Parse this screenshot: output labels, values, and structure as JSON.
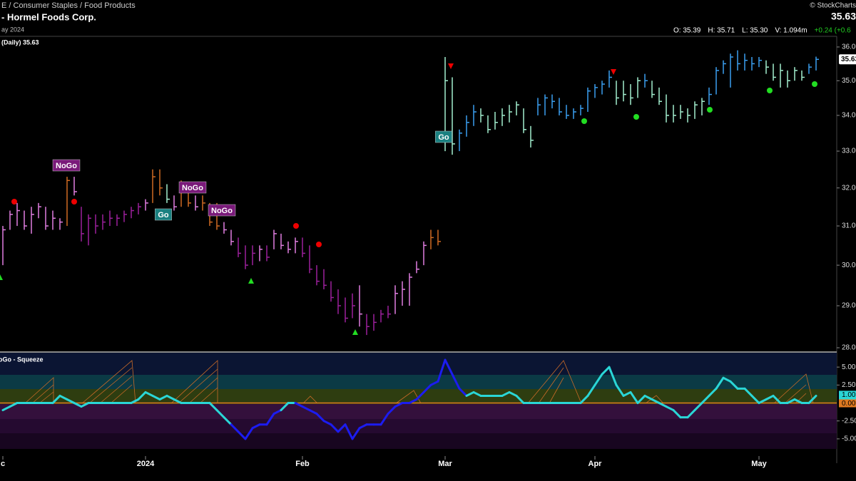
{
  "header": {
    "breadcrumb": "E / Consumer Staples / Food Products",
    "title": "- Hormel Foods Corp.",
    "date": "ay 2024",
    "brand": "© StockCharts",
    "last": "35.63",
    "quote": [
      "O: 35.39",
      "H: 35.71",
      "L: 35.30",
      "V: 1.094m"
    ],
    "change": "+0.24 (+0.6"
  },
  "chart_data": [
    {
      "type": "ohlc",
      "label": "(Daily) 35.63",
      "log_scale": true,
      "xlim": [
        0,
        114
      ],
      "xticks": [
        {
          "value": 0,
          "label": "c"
        },
        {
          "value": 20,
          "label": "2024"
        },
        {
          "value": 42,
          "label": "Feb"
        },
        {
          "value": 62,
          "label": "Mar"
        },
        {
          "value": 83,
          "label": "Apr"
        },
        {
          "value": 106,
          "label": "May"
        }
      ],
      "ylim": [
        27.9,
        36.3
      ],
      "yticks": [
        {
          "value": 28,
          "label": "28.00"
        },
        {
          "value": 29,
          "label": "29.00"
        },
        {
          "value": 30,
          "label": "30.00"
        },
        {
          "value": 31,
          "label": "31.00"
        },
        {
          "value": 32,
          "label": "32.00"
        },
        {
          "value": 33,
          "label": "33.00"
        },
        {
          "value": 34,
          "label": "34.00"
        },
        {
          "value": 35,
          "label": "35.00"
        },
        {
          "value": 36,
          "label": "36.00"
        }
      ],
      "palette": {
        "p": "#e07ee0",
        "d": "#9c209c",
        "o": "#d06a22",
        "a": "#a2efcf",
        "b": "#3a9ff0"
      },
      "high": [
        31.0,
        31.4,
        31.6,
        31.4,
        31.5,
        31.6,
        31.5,
        31.4,
        31.2,
        32.3,
        32.3,
        31.5,
        31.3,
        31.3,
        31.3,
        31.4,
        31.3,
        31.4,
        31.5,
        31.6,
        31.7,
        32.5,
        32.5,
        32.1,
        31.8,
        32.2,
        32.0,
        31.8,
        31.8,
        31.6,
        31.6,
        31.1,
        30.9,
        30.7,
        30.5,
        30.5,
        30.5,
        30.5,
        30.9,
        30.8,
        30.6,
        30.7,
        30.7,
        30.5,
        30.0,
        29.9,
        29.6,
        29.4,
        29.2,
        29.3,
        29.5,
        28.8,
        28.8,
        28.9,
        29.0,
        29.5,
        29.6,
        29.8,
        30.1,
        30.6,
        30.9,
        30.9,
        35.7,
        35.1,
        33.6,
        34.0,
        34.3,
        34.2,
        34.0,
        34.1,
        34.2,
        34.3,
        34.4,
        34.2,
        33.7,
        34.5,
        34.6,
        34.6,
        34.5,
        34.3,
        34.2,
        34.3,
        34.8,
        34.9,
        35.0,
        35.3,
        35.0,
        35.0,
        34.9,
        35.1,
        35.2,
        35.0,
        34.8,
        34.6,
        34.3,
        34.3,
        34.2,
        34.4,
        34.5,
        34.8,
        35.4,
        35.6,
        35.8,
        35.9,
        35.8,
        35.7,
        35.7,
        35.6,
        35.5,
        35.5,
        35.3,
        35.4,
        35.3,
        35.5,
        35.71
      ],
      "low": [
        30.0,
        30.9,
        31.0,
        30.9,
        30.8,
        31.2,
        30.9,
        30.9,
        30.9,
        31.0,
        31.8,
        30.6,
        30.5,
        30.8,
        30.9,
        31.0,
        31.0,
        31.1,
        31.2,
        31.3,
        31.4,
        31.6,
        31.8,
        31.6,
        31.4,
        31.5,
        31.5,
        31.4,
        31.4,
        31.0,
        30.9,
        30.8,
        30.5,
        30.2,
        29.9,
        30.0,
        30.1,
        30.1,
        30.4,
        30.4,
        30.3,
        30.3,
        30.2,
        29.8,
        29.5,
        29.4,
        29.1,
        28.8,
        28.6,
        28.7,
        28.5,
        28.3,
        28.4,
        28.6,
        28.7,
        28.8,
        29.0,
        29.0,
        29.8,
        30.0,
        30.4,
        30.5,
        33.0,
        32.9,
        33.0,
        33.4,
        33.7,
        33.8,
        33.5,
        33.6,
        33.7,
        33.8,
        34.0,
        33.5,
        33.1,
        34.0,
        34.0,
        34.2,
        34.0,
        33.9,
        33.9,
        34.0,
        34.1,
        34.5,
        34.6,
        34.8,
        34.3,
        34.4,
        34.3,
        34.5,
        34.8,
        34.5,
        34.3,
        33.8,
        33.8,
        33.9,
        33.8,
        33.9,
        34.0,
        34.3,
        34.6,
        35.2,
        34.8,
        35.3,
        35.3,
        35.3,
        35.4,
        35.2,
        35.0,
        34.8,
        34.8,
        35.0,
        35.0,
        35.2,
        35.3
      ],
      "close": [
        30.9,
        31.3,
        31.4,
        31.0,
        31.3,
        31.5,
        31.0,
        31.2,
        31.1,
        32.2,
        31.9,
        30.8,
        31.2,
        31.0,
        31.1,
        31.2,
        31.2,
        31.3,
        31.4,
        31.5,
        31.6,
        32.3,
        32.0,
        31.7,
        31.5,
        31.9,
        31.6,
        31.5,
        31.6,
        31.1,
        31.0,
        30.9,
        30.6,
        30.3,
        30.0,
        30.3,
        30.4,
        30.2,
        30.8,
        30.5,
        30.4,
        30.6,
        30.3,
        29.9,
        29.6,
        29.5,
        29.2,
        29.0,
        28.7,
        29.0,
        28.8,
        28.5,
        28.6,
        28.8,
        28.8,
        29.3,
        29.4,
        29.7,
        29.9,
        30.5,
        30.7,
        30.6,
        35.0,
        33.2,
        33.5,
        33.8,
        34.1,
        34.0,
        33.6,
        33.8,
        34.0,
        34.1,
        34.3,
        33.6,
        33.3,
        34.3,
        34.5,
        34.4,
        34.1,
        34.0,
        34.1,
        34.2,
        34.7,
        34.8,
        34.9,
        35.1,
        34.5,
        34.6,
        34.5,
        35.0,
        35.0,
        34.6,
        34.4,
        34.0,
        34.0,
        34.1,
        34.0,
        34.3,
        34.4,
        34.6,
        35.3,
        35.5,
        35.7,
        35.5,
        35.6,
        35.5,
        35.6,
        35.4,
        35.1,
        35.3,
        35.0,
        35.3,
        35.1,
        35.4,
        35.63
      ],
      "colors": [
        "p",
        "p",
        "p",
        "p",
        "p",
        "p",
        "p",
        "p",
        "p",
        "o",
        "p",
        "d",
        "d",
        "d",
        "d",
        "d",
        "d",
        "d",
        "d",
        "d",
        "p",
        "o",
        "o",
        "a",
        "p",
        "o",
        "o",
        "p",
        "o",
        "o",
        "o",
        "p",
        "p",
        "d",
        "d",
        "d",
        "p",
        "d",
        "p",
        "p",
        "p",
        "p",
        "d",
        "d",
        "d",
        "d",
        "d",
        "d",
        "d",
        "d",
        "p",
        "d",
        "d",
        "d",
        "d",
        "p",
        "p",
        "p",
        "p",
        "p",
        "o",
        "o",
        "a",
        "a",
        "b",
        "b",
        "b",
        "a",
        "a",
        "a",
        "a",
        "a",
        "a",
        "a",
        "a",
        "b",
        "b",
        "b",
        "b",
        "b",
        "b",
        "b",
        "b",
        "b",
        "b",
        "b",
        "a",
        "a",
        "a",
        "a",
        "b",
        "a",
        "a",
        "a",
        "a",
        "a",
        "a",
        "a",
        "a",
        "b",
        "b",
        "b",
        "b",
        "b",
        "b",
        "b",
        "b",
        "a",
        "a",
        "a",
        "a",
        "a",
        "a",
        "b",
        "b"
      ],
      "annotations": [
        "NoGo",
        "NoGo",
        "NoGo",
        "Go",
        "Go"
      ]
    },
    {
      "type": "line",
      "label": "oGo - Squeeze",
      "xlim": [
        0,
        114
      ],
      "ylim": [
        -6.6,
        7
      ],
      "yticks": [
        {
          "value": 5,
          "label": "5.00"
        },
        {
          "value": 2.5,
          "label": "2.50"
        },
        {
          "value": 0,
          "label": "0.00"
        },
        {
          "value": -2.5,
          "label": "-2.50"
        },
        {
          "value": -5,
          "label": "-5.00"
        }
      ],
      "palette": {
        "c": "#2ad6d6",
        "k": "#1c1cf0"
      },
      "values": [
        -1,
        -0.5,
        0,
        0,
        0,
        0,
        0,
        0,
        1,
        0.5,
        0,
        -0.5,
        0,
        0,
        0,
        0,
        0,
        0,
        0,
        0.5,
        1.5,
        1,
        0.5,
        1,
        0.5,
        0,
        0,
        0,
        0,
        0,
        -1,
        -2,
        -3,
        -4,
        -5,
        -3.5,
        -3,
        -3,
        -1.5,
        -1,
        0,
        0,
        -0.5,
        -1,
        -1.5,
        -2.5,
        -3,
        -4,
        -3,
        -5,
        -3.5,
        -3,
        -3,
        -3,
        -1.5,
        -0.5,
        0,
        0,
        0.5,
        1.5,
        2.5,
        3,
        6,
        4,
        2,
        1,
        1.5,
        1,
        1,
        1,
        1,
        1.5,
        1,
        0,
        0,
        0,
        0,
        0,
        0,
        0,
        0,
        0,
        1,
        2.5,
        4,
        5,
        2.5,
        1,
        1.5,
        0,
        1,
        0.5,
        0,
        -0.5,
        -1,
        -2,
        -2,
        -1,
        0,
        1,
        2,
        3.5,
        3,
        2,
        2,
        1,
        0,
        0.5,
        1,
        0,
        0,
        0.5,
        0,
        0,
        1
      ],
      "colors": [
        "c",
        "c",
        "c",
        "c",
        "c",
        "c",
        "c",
        "c",
        "c",
        "c",
        "c",
        "c",
        "c",
        "c",
        "c",
        "c",
        "c",
        "c",
        "c",
        "c",
        "c",
        "c",
        "c",
        "c",
        "c",
        "c",
        "c",
        "c",
        "c",
        "c",
        "c",
        "c",
        "c",
        "k",
        "k",
        "k",
        "k",
        "k",
        "k",
        "k",
        "c",
        "c",
        "k",
        "k",
        "k",
        "k",
        "k",
        "k",
        "k",
        "k",
        "k",
        "k",
        "k",
        "k",
        "k",
        "k",
        "k",
        "k",
        "k",
        "k",
        "k",
        "k",
        "k",
        "k",
        "k",
        "k",
        "c",
        "c",
        "c",
        "c",
        "c",
        "c",
        "c",
        "c",
        "c",
        "c",
        "c",
        "c",
        "c",
        "c",
        "c",
        "c",
        "c",
        "c",
        "c",
        "c",
        "c",
        "c",
        "c",
        "c",
        "c",
        "c",
        "c",
        "c",
        "c",
        "c",
        "c",
        "c",
        "c",
        "c",
        "c",
        "c",
        "c",
        "c",
        "c",
        "c",
        "c",
        "c",
        "c",
        "c",
        "c",
        "c",
        "c",
        "c",
        "c"
      ],
      "last_value_label": "1.00"
    }
  ]
}
